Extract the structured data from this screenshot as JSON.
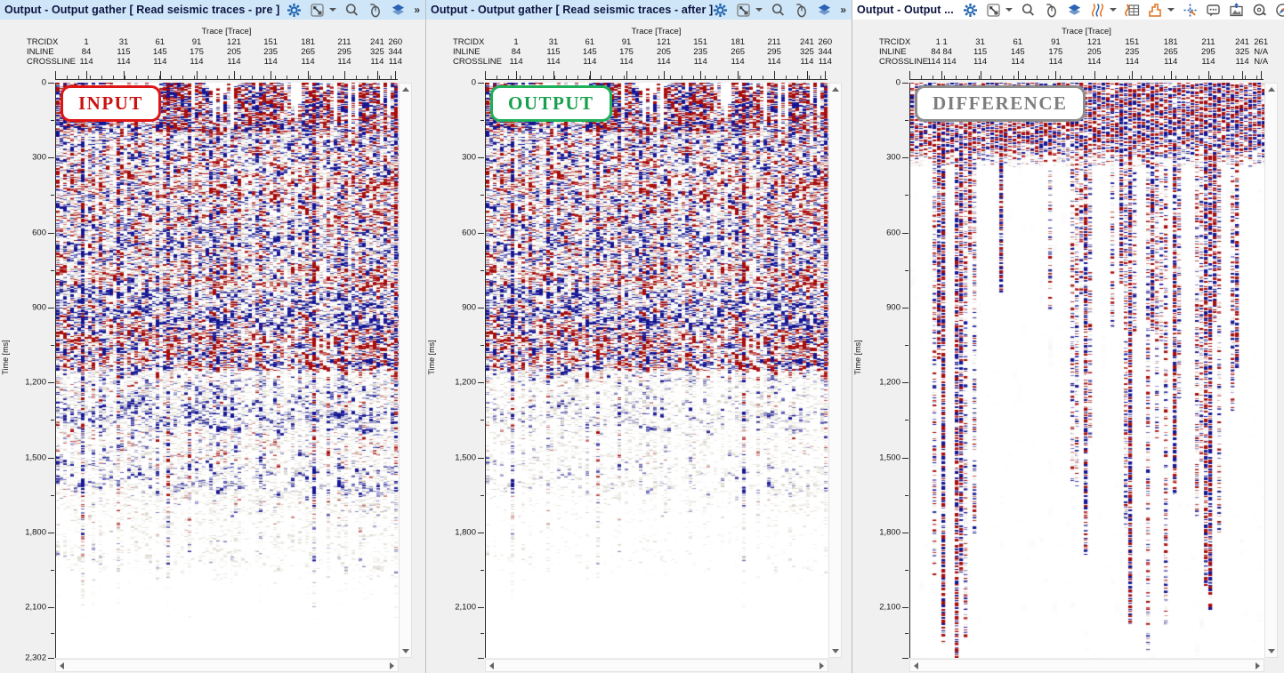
{
  "panels": [
    {
      "title": "Output - Output gather [ Read seismic traces - pre ]",
      "stamp": {
        "label": "INPUT",
        "color": "#cc1111"
      },
      "colors": {
        "title_bar_bg": "#cfe6f8"
      },
      "toolbar": {
        "icons": [
          "settings-gear",
          "fit-view",
          "fit-view-dropdown",
          "zoom",
          "mouse-tools",
          "layers"
        ],
        "overflow_chevron": "»"
      },
      "header": {
        "axis_title": "Trace [Trace]",
        "row_labels": [
          "TRCIDX",
          "INLINE",
          "CROSSLINE"
        ],
        "trcidx": [
          "1",
          "31",
          "61",
          "91",
          "121",
          "151",
          "181",
          "211",
          "241",
          "260"
        ],
        "inline": [
          "84",
          "115",
          "145",
          "175",
          "205",
          "235",
          "265",
          "295",
          "325",
          "344"
        ],
        "crossline": [
          "114",
          "114",
          "114",
          "114",
          "114",
          "114",
          "114",
          "114",
          "114",
          "114"
        ]
      },
      "time_axis": {
        "label": "Time [ms]",
        "ticks": [
          "0",
          "300",
          "600",
          "900",
          "1,200",
          "1,500",
          "1,800",
          "2,100"
        ],
        "end_tick": "2,302"
      }
    },
    {
      "title": "Output - Output gather [ Read seismic traces - after ]",
      "stamp": {
        "label": "OUTPUT",
        "color": "#17a04d"
      },
      "colors": {
        "title_bar_bg": "#cfe6f8"
      },
      "toolbar": {
        "icons": [
          "settings-gear",
          "fit-view",
          "fit-view-dropdown",
          "zoom",
          "mouse-tools",
          "layers"
        ],
        "overflow_chevron": "»"
      },
      "header": {
        "axis_title": "Trace [Trace]",
        "row_labels": [
          "TRCIDX",
          "INLINE",
          "CROSSLINE"
        ],
        "trcidx": [
          "1",
          "31",
          "61",
          "91",
          "121",
          "151",
          "181",
          "211",
          "241",
          "260"
        ],
        "inline": [
          "84",
          "115",
          "145",
          "175",
          "205",
          "235",
          "265",
          "295",
          "325",
          "344"
        ],
        "crossline": [
          "114",
          "114",
          "114",
          "114",
          "114",
          "114",
          "114",
          "114",
          "114",
          "114"
        ]
      },
      "time_axis": {
        "label": "Time [ms]",
        "ticks": [
          "0",
          "300",
          "600",
          "900",
          "1,200",
          "1,500",
          "1,800",
          "2,100"
        ],
        "end_tick": null
      }
    },
    {
      "title": "Output - Output ...",
      "stamp": {
        "label": "DIFFERENCE",
        "color": "#7d7d7d"
      },
      "colors": {
        "title_bar_bg": "#ffffff"
      },
      "toolbar": {
        "icons": [
          "settings-gear",
          "fit-view",
          "fit-view-dropdown",
          "zoom",
          "mouse-tools",
          "layers",
          "wiggle-display",
          "wiggle-dropdown",
          "grid-wave",
          "histogram",
          "histogram-dropdown",
          "crosshair",
          "comment",
          "export-image",
          "measure",
          "compass"
        ],
        "overflow_chevron": null
      },
      "header": {
        "axis_title": "Trace [Trace]",
        "row_labels": [
          "TRCIDX",
          "INLINE",
          "CROSSLINE"
        ],
        "trcidx": [
          "1 1",
          "31",
          "61",
          "91",
          "121",
          "151",
          "181",
          "211",
          "241",
          "261"
        ],
        "inline": [
          "84 84",
          "115",
          "145",
          "175",
          "205",
          "235",
          "265",
          "295",
          "325",
          "N/A"
        ],
        "crossline": [
          "114 114",
          "114",
          "114",
          "114",
          "114",
          "114",
          "114",
          "114",
          "114",
          "N/A"
        ]
      },
      "time_axis": {
        "label": "Time [ms]",
        "ticks": [
          "0",
          "300",
          "600",
          "900",
          "1,200",
          "1,500",
          "1,800",
          "2,100"
        ],
        "end_tick": null
      }
    }
  ],
  "accent_colors": {
    "seismic_positive": "#a80c0c",
    "seismic_negative": "#161694",
    "seismic_weak": "#80704a",
    "toolbar_blue": "#1f62ae",
    "toolbar_orange": "#e2711d"
  }
}
